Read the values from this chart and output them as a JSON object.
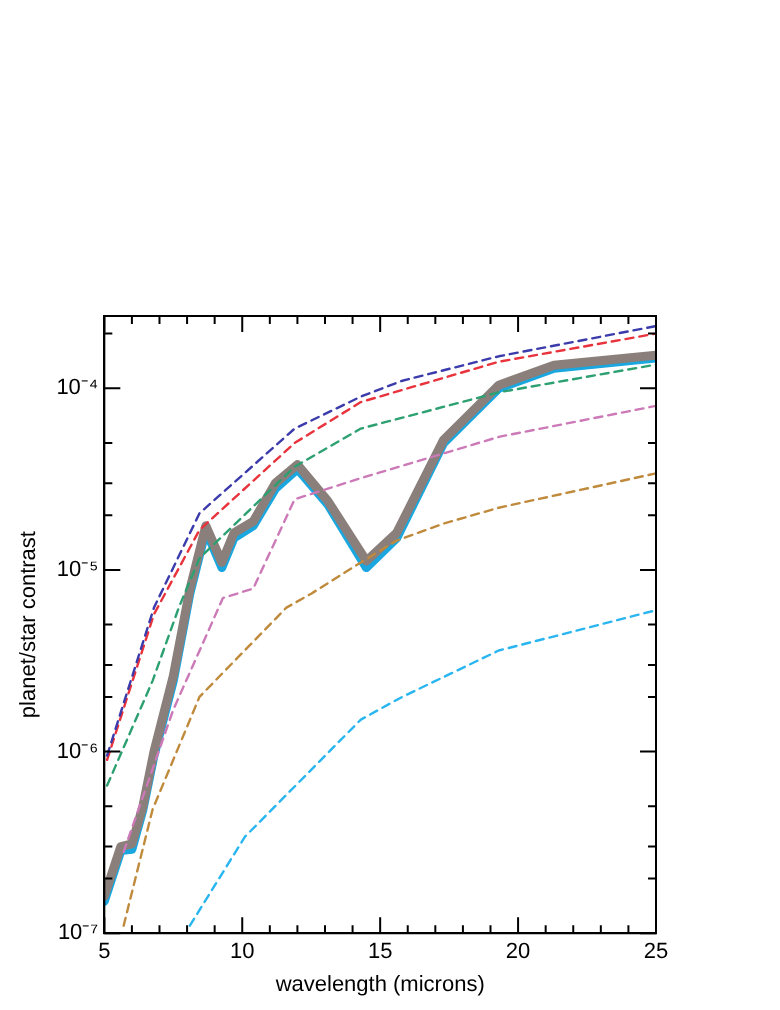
{
  "chart_data": {
    "type": "line",
    "xlabel": "wavelength (microns)",
    "ylabel": "planet/star contrast",
    "log": "y",
    "grid": false,
    "legend": false,
    "marker": "none",
    "xlim": [
      5,
      25
    ],
    "ylim": [
      1e-07,
      0.00025
    ],
    "xticks": [
      5,
      {
        "value": 6,
        "label": null
      },
      {
        "value": 7,
        "label": null
      },
      {
        "value": 8,
        "label": null
      },
      {
        "value": 9,
        "label": null
      },
      10,
      {
        "value": 11,
        "label": null
      },
      {
        "value": 12,
        "label": null
      },
      {
        "value": 13,
        "label": null
      },
      {
        "value": 14,
        "label": null
      },
      15,
      {
        "value": 16,
        "label": null
      },
      {
        "value": 17,
        "label": null
      },
      {
        "value": 18,
        "label": null
      },
      {
        "value": 19,
        "label": null
      },
      20,
      {
        "value": 21,
        "label": null
      },
      {
        "value": 22,
        "label": null
      },
      {
        "value": 23,
        "label": null
      },
      {
        "value": 24,
        "label": null
      },
      25
    ],
    "yticks": [
      {
        "value": 1e-07,
        "label": "10⁻⁷"
      },
      {
        "value": 2e-07,
        "label": null
      },
      {
        "value": 3e-07,
        "label": null
      },
      {
        "value": 5e-07,
        "label": null
      },
      {
        "value": 1e-06,
        "label": "10⁻⁶"
      },
      {
        "value": 2e-06,
        "label": null
      },
      {
        "value": 3e-06,
        "label": null
      },
      {
        "value": 5e-06,
        "label": null
      },
      {
        "value": 1e-05,
        "label": "10⁻⁵"
      },
      {
        "value": 2e-05,
        "label": null
      },
      {
        "value": 3e-05,
        "label": null
      },
      {
        "value": 5e-05,
        "label": null
      },
      {
        "value": 0.0001,
        "label": "10⁻⁴"
      },
      {
        "value": 0.0002,
        "label": null
      }
    ],
    "series": [
      {
        "color": "#3b3bab",
        "line_style": "dashed",
        "x": [
          5.1,
          6.8,
          8.45,
          11.9,
          14.3,
          15.8,
          19.3,
          25
        ],
        "values": [
          9.5e-07,
          6.2e-06,
          2.05e-05,
          6e-05,
          9e-05,
          0.00011,
          0.00015,
          0.00022
        ]
      },
      {
        "color": "#e8323c",
        "line_style": "dashed",
        "x": [
          5.1,
          6.8,
          8.45,
          11.9,
          14.3,
          19.3,
          25
        ],
        "values": [
          9e-07,
          5.7e-06,
          1.66e-05,
          5e-05,
          8.4e-05,
          0.00014,
          0.0002
        ]
      },
      {
        "color": "#2ca070",
        "line_style": "dashed",
        "x": [
          5.1,
          6.75,
          7.7,
          8.45,
          11.9,
          14.3,
          19.3,
          25
        ],
        "values": [
          6.5e-07,
          2.45e-06,
          6.2e-06,
          1.16e-05,
          3.7e-05,
          6e-05,
          9.5e-05,
          0.000135
        ]
      },
      {
        "color": "#cc79b8",
        "line_style": "dashed",
        "x": [
          5.7,
          7.5,
          9.3,
          10.4,
          11.9,
          14.3,
          19.3,
          25
        ],
        "values": [
          2.8e-07,
          1.7e-06,
          7e-06,
          7.9e-06,
          2.45e-05,
          3.2e-05,
          5.4e-05,
          8e-05
        ]
      },
      {
        "color": "#c08a3c",
        "line_style": "dashed",
        "x": [
          5.7,
          6.75,
          8.45,
          11.6,
          12.5,
          14.3,
          15.6,
          17.3,
          19.3,
          25
        ],
        "values": [
          1.1e-07,
          4.8e-07,
          2e-06,
          6.2e-06,
          7.4e-06,
          1.1e-05,
          1.45e-05,
          1.8e-05,
          2.2e-05,
          3.4e-05
        ]
      },
      {
        "color": "#29b6f0",
        "line_style": "dashed",
        "x": [
          8.1,
          10.1,
          14.3,
          15.8,
          19.3,
          25
        ],
        "values": [
          1.1e-07,
          3.4e-07,
          1.5e-06,
          2e-06,
          3.6e-06,
          6e-06
        ]
      },
      {
        "color": "#8a7f7a",
        "line_style": "solid",
        "x": [
          5,
          5.6,
          6,
          6.4,
          6.8,
          7.5,
          8.1,
          8.68,
          9.26,
          9.7,
          10.4,
          11.2,
          12,
          13.1,
          14.5,
          15.6,
          17.3,
          19.3,
          21.3,
          25
        ],
        "values": [
          1.6e-07,
          3e-07,
          3.1e-07,
          5e-07,
          1e-06,
          2.6e-06,
          7.8e-06,
          1.75e-05,
          1.1e-05,
          1.6e-05,
          1.85e-05,
          3e-05,
          3.8e-05,
          2.4e-05,
          1.12e-05,
          1.6e-05,
          5.2e-05,
          0.000104,
          0.000134,
          0.000152
        ]
      },
      {
        "color": "#1aa7e0",
        "line_style": "solid",
        "x": [
          5,
          5.6,
          6,
          6.4,
          6.8,
          7.5,
          8.1,
          8.68,
          9.26,
          9.7,
          10.4,
          11.2,
          12,
          13.1,
          14.5,
          15.6,
          17.3,
          19.3,
          21.3,
          25
        ],
        "values": [
          1.5e-07,
          2.85e-07,
          2.9e-07,
          4.8e-07,
          9.5e-07,
          2.45e-06,
          7.4e-06,
          1.66e-05,
          1.03e-05,
          1.5e-05,
          1.75e-05,
          2.8e-05,
          3.6e-05,
          2.3e-05,
          1.03e-05,
          1.5e-05,
          5e-05,
          0.0001,
          0.000129,
          0.000147
        ]
      }
    ]
  }
}
